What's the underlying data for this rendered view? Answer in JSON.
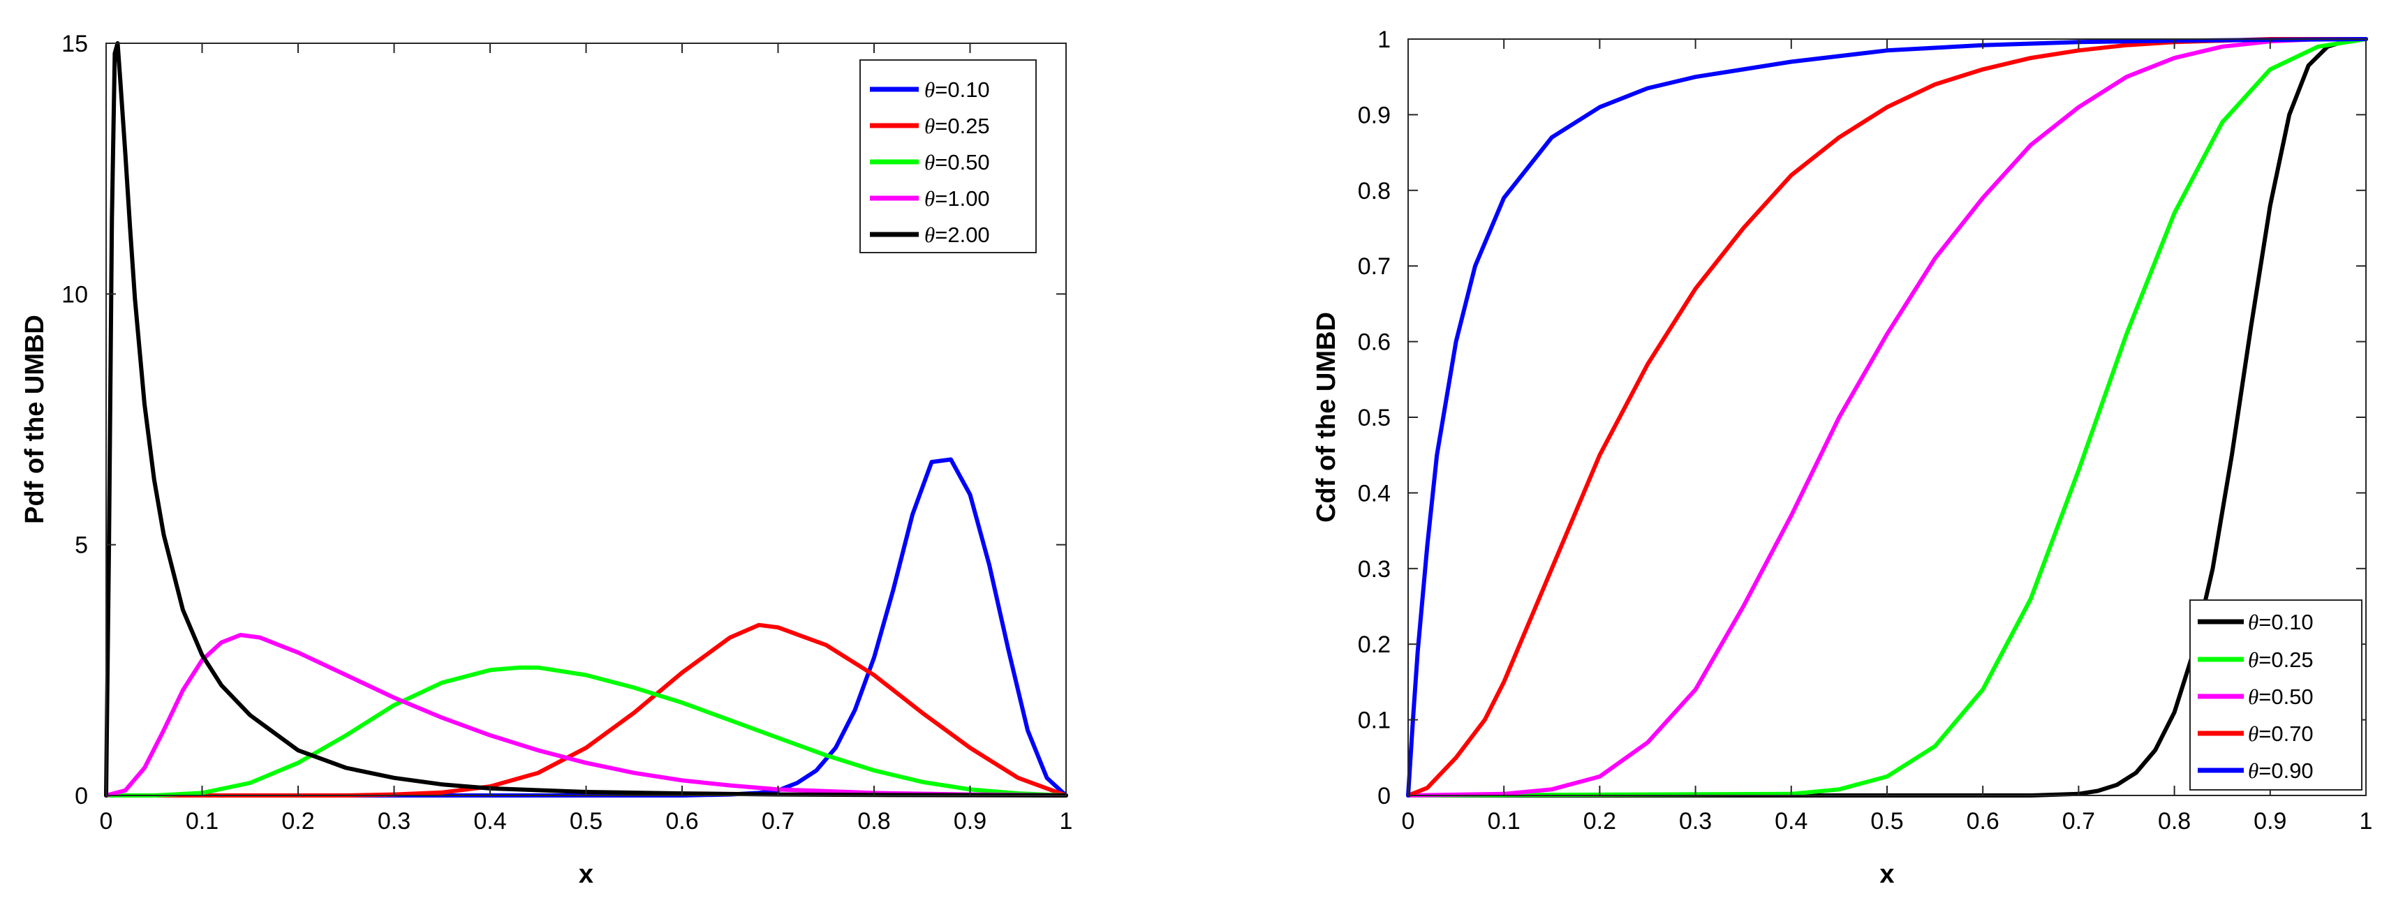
{
  "chart_data": [
    {
      "type": "line",
      "title": "",
      "xlabel": "x",
      "ylabel": "Pdf of the UMBD",
      "xlim": [
        0,
        1
      ],
      "ylim": [
        0,
        15
      ],
      "xticks": [
        0,
        0.1,
        0.2,
        0.3,
        0.4,
        0.5,
        0.6,
        0.7,
        0.8,
        0.9,
        1
      ],
      "xtick_labels": [
        "0",
        "0.1",
        "0.2",
        "0.3",
        "0.4",
        "0.5",
        "0.6",
        "0.7",
        "0.8",
        "0.9",
        "1"
      ],
      "yticks": [
        0,
        5,
        10,
        15
      ],
      "ytick_labels": [
        "0",
        "5",
        "10",
        "15"
      ],
      "legend_location": "top-right",
      "series": [
        {
          "name": "θ=0.10",
          "symbol": "θ",
          "value_text": "=0.10",
          "color": "#0000ff",
          "x": [
            0,
            0.6,
            0.65,
            0.68,
            0.7,
            0.72,
            0.74,
            0.76,
            0.78,
            0.8,
            0.82,
            0.84,
            0.86,
            0.88,
            0.9,
            0.92,
            0.94,
            0.96,
            0.98,
            1.0
          ],
          "y": [
            0,
            0,
            0.02,
            0.05,
            0.1,
            0.25,
            0.5,
            0.95,
            1.7,
            2.75,
            4.1,
            5.6,
            6.65,
            6.7,
            6.0,
            4.6,
            2.9,
            1.3,
            0.35,
            0
          ]
        },
        {
          "name": "θ=0.25",
          "symbol": "θ",
          "value_text": "=0.25",
          "color": "#ff0000",
          "x": [
            0,
            0.25,
            0.3,
            0.35,
            0.4,
            0.45,
            0.5,
            0.55,
            0.6,
            0.65,
            0.68,
            0.7,
            0.75,
            0.8,
            0.85,
            0.9,
            0.95,
            1.0
          ],
          "y": [
            0,
            0,
            0.02,
            0.06,
            0.18,
            0.45,
            0.95,
            1.65,
            2.45,
            3.15,
            3.4,
            3.35,
            3.0,
            2.4,
            1.65,
            0.95,
            0.35,
            0
          ]
        },
        {
          "name": "θ=0.50",
          "symbol": "θ",
          "value_text": "=0.50",
          "color": "#00ff00",
          "x": [
            0,
            0.05,
            0.1,
            0.15,
            0.2,
            0.25,
            0.3,
            0.35,
            0.4,
            0.43,
            0.45,
            0.5,
            0.55,
            0.6,
            0.65,
            0.7,
            0.75,
            0.8,
            0.85,
            0.9,
            0.95,
            1.0
          ],
          "y": [
            0,
            0.0,
            0.05,
            0.25,
            0.65,
            1.2,
            1.8,
            2.25,
            2.5,
            2.55,
            2.55,
            2.4,
            2.15,
            1.85,
            1.5,
            1.15,
            0.8,
            0.5,
            0.27,
            0.12,
            0.04,
            0
          ]
        },
        {
          "name": "θ=1.00",
          "symbol": "θ",
          "value_text": "=1.00",
          "color": "#ff00ff",
          "x": [
            0,
            0.02,
            0.04,
            0.06,
            0.08,
            0.1,
            0.12,
            0.14,
            0.16,
            0.18,
            0.2,
            0.25,
            0.3,
            0.35,
            0.4,
            0.45,
            0.5,
            0.55,
            0.6,
            0.65,
            0.7,
            0.8,
            0.9,
            1.0
          ],
          "y": [
            0,
            0.1,
            0.55,
            1.3,
            2.1,
            2.7,
            3.05,
            3.2,
            3.15,
            3.0,
            2.85,
            2.4,
            1.95,
            1.55,
            1.2,
            0.9,
            0.65,
            0.45,
            0.3,
            0.2,
            0.12,
            0.05,
            0.02,
            0
          ]
        },
        {
          "name": "θ=2.00",
          "symbol": "θ",
          "value_text": "=2.00",
          "color": "#000000",
          "x": [
            0,
            0.003,
            0.006,
            0.009,
            0.012,
            0.015,
            0.02,
            0.025,
            0.03,
            0.04,
            0.05,
            0.06,
            0.08,
            0.1,
            0.12,
            0.15,
            0.2,
            0.25,
            0.3,
            0.35,
            0.4,
            0.5,
            0.6,
            0.7,
            0.8,
            0.9,
            1.0
          ],
          "y": [
            0,
            5.0,
            11.5,
            14.8,
            15.0,
            14.2,
            12.8,
            11.3,
            9.9,
            7.8,
            6.3,
            5.2,
            3.7,
            2.8,
            2.2,
            1.6,
            0.9,
            0.55,
            0.35,
            0.22,
            0.14,
            0.07,
            0.04,
            0.02,
            0.01,
            0.005,
            0
          ]
        }
      ]
    },
    {
      "type": "line",
      "title": "",
      "xlabel": "x",
      "ylabel": "Cdf of the UMBD",
      "xlim": [
        0,
        1
      ],
      "ylim": [
        0,
        1
      ],
      "xticks": [
        0,
        0.1,
        0.2,
        0.3,
        0.4,
        0.5,
        0.6,
        0.7,
        0.8,
        0.9,
        1
      ],
      "xtick_labels": [
        "0",
        "0.1",
        "0.2",
        "0.3",
        "0.4",
        "0.5",
        "0.6",
        "0.7",
        "0.8",
        "0.9",
        "1"
      ],
      "yticks": [
        0,
        0.1,
        0.2,
        0.3,
        0.4,
        0.5,
        0.6,
        0.7,
        0.8,
        0.9,
        1
      ],
      "ytick_labels": [
        "0",
        "0.1",
        "0.2",
        "0.3",
        "0.4",
        "0.5",
        "0.6",
        "0.7",
        "0.8",
        "0.9",
        "1"
      ],
      "legend_location": "bottom-right",
      "series": [
        {
          "name": "θ=0.10",
          "symbol": "θ",
          "value_text": "=0.10",
          "color": "#000000",
          "x": [
            0,
            0.65,
            0.7,
            0.72,
            0.74,
            0.76,
            0.78,
            0.8,
            0.82,
            0.84,
            0.86,
            0.88,
            0.9,
            0.92,
            0.94,
            0.96,
            0.98,
            1.0
          ],
          "y": [
            0,
            0,
            0.002,
            0.006,
            0.014,
            0.03,
            0.06,
            0.11,
            0.19,
            0.3,
            0.45,
            0.62,
            0.78,
            0.9,
            0.965,
            0.99,
            0.998,
            1.0
          ]
        },
        {
          "name": "θ=0.25",
          "symbol": "θ",
          "value_text": "=0.25",
          "color": "#00ff00",
          "x": [
            0,
            0.4,
            0.45,
            0.5,
            0.55,
            0.6,
            0.65,
            0.7,
            0.75,
            0.8,
            0.85,
            0.9,
            0.95,
            1.0
          ],
          "y": [
            0,
            0.002,
            0.008,
            0.025,
            0.065,
            0.14,
            0.26,
            0.43,
            0.61,
            0.77,
            0.89,
            0.96,
            0.99,
            1.0
          ]
        },
        {
          "name": "θ=0.50",
          "symbol": "θ",
          "value_text": "=0.50",
          "color": "#ff00ff",
          "x": [
            0,
            0.1,
            0.15,
            0.2,
            0.25,
            0.3,
            0.35,
            0.4,
            0.45,
            0.5,
            0.55,
            0.6,
            0.65,
            0.7,
            0.75,
            0.8,
            0.85,
            0.9,
            0.95,
            1.0
          ],
          "y": [
            0,
            0.002,
            0.008,
            0.025,
            0.07,
            0.14,
            0.25,
            0.37,
            0.5,
            0.61,
            0.71,
            0.79,
            0.86,
            0.91,
            0.95,
            0.975,
            0.99,
            0.997,
            1.0,
            1.0
          ]
        },
        {
          "name": "θ=0.70",
          "symbol": "θ",
          "value_text": "=0.70",
          "color": "#ff0000",
          "x": [
            0,
            0.02,
            0.05,
            0.08,
            0.1,
            0.15,
            0.2,
            0.25,
            0.3,
            0.35,
            0.4,
            0.45,
            0.5,
            0.55,
            0.6,
            0.65,
            0.7,
            0.75,
            0.8,
            0.85,
            0.9,
            1.0
          ],
          "y": [
            0,
            0.01,
            0.05,
            0.1,
            0.15,
            0.3,
            0.45,
            0.57,
            0.67,
            0.75,
            0.82,
            0.87,
            0.91,
            0.94,
            0.96,
            0.975,
            0.985,
            0.992,
            0.996,
            0.998,
            1.0,
            1.0
          ]
        },
        {
          "name": "θ=0.90",
          "symbol": "θ",
          "value_text": "=0.90",
          "color": "#0000ff",
          "x": [
            0,
            0.005,
            0.01,
            0.02,
            0.03,
            0.05,
            0.07,
            0.1,
            0.15,
            0.2,
            0.25,
            0.3,
            0.35,
            0.4,
            0.5,
            0.6,
            0.7,
            0.8,
            0.9,
            1.0
          ],
          "y": [
            0,
            0.1,
            0.19,
            0.33,
            0.45,
            0.6,
            0.7,
            0.79,
            0.87,
            0.91,
            0.935,
            0.95,
            0.96,
            0.97,
            0.985,
            0.992,
            0.996,
            0.998,
            0.999,
            1.0
          ]
        }
      ]
    }
  ]
}
